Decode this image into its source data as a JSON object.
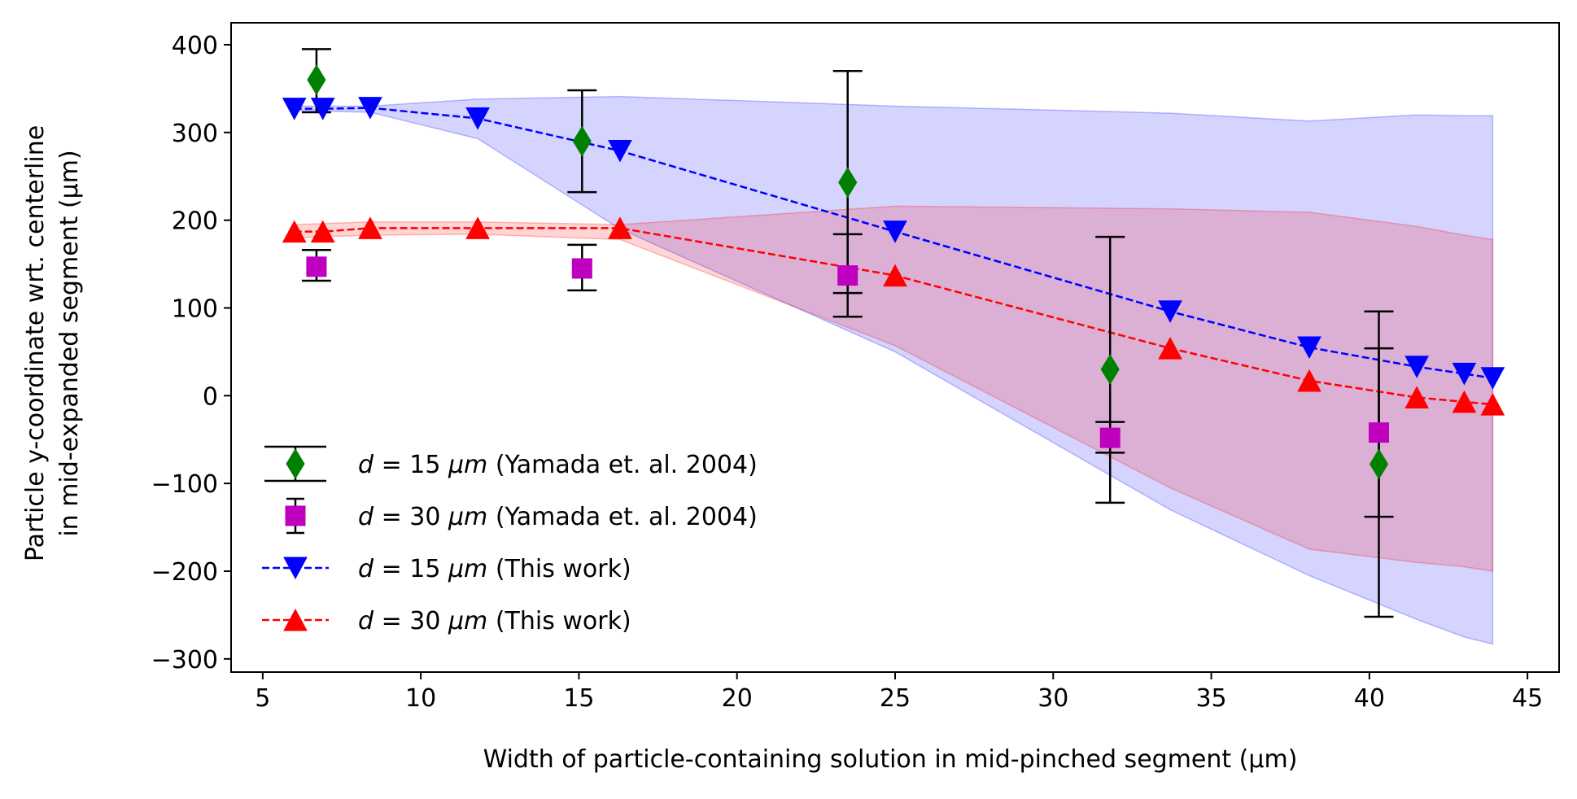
{
  "chart_data": {
    "type": "line",
    "title": "",
    "xlabel": "Width of particle-containing solution in mid-pinched segment (μm)",
    "ylabel_line1": "Particle y-coordinate wrt. centerline",
    "ylabel_line2": "in mid-expanded segment (μm)",
    "xlim": [
      4,
      46
    ],
    "ylim": [
      -315,
      425
    ],
    "x_ticks": [
      5,
      10,
      15,
      20,
      25,
      30,
      35,
      40,
      45
    ],
    "y_ticks": [
      400,
      300,
      200,
      100,
      0,
      -100,
      -200,
      -300
    ],
    "x_tick_labels": [
      "5",
      "10",
      "15",
      "20",
      "25",
      "30",
      "35",
      "40",
      "45"
    ],
    "y_tick_labels": [
      "400",
      "300",
      "200",
      "100",
      "0",
      "−100",
      "−200",
      "−300"
    ],
    "grid": false,
    "legend_position": "lower-left",
    "series": [
      {
        "name": "d=15 μm (Yamada et. al. 2004)",
        "label_var": "d",
        "label_eq": " = 15 ",
        "label_unit": "μm",
        "label_suffix": " (Yamada et. al. 2004)",
        "kind": "errorbar",
        "marker": "diamond",
        "color": "#008000",
        "x": [
          6.7,
          15.1,
          23.5,
          31.8,
          40.3
        ],
        "y": [
          360,
          290,
          243,
          30,
          -78
        ],
        "yerr_low": [
          323,
          232,
          117,
          -122,
          -252
        ],
        "yerr_high": [
          395,
          348,
          370,
          181,
          96
        ]
      },
      {
        "name": "d=30 μm (Yamada et. al. 2004)",
        "label_var": "d",
        "label_eq": " = 30 ",
        "label_unit": "μm",
        "label_suffix": " (Yamada et. al. 2004)",
        "kind": "errorbar",
        "marker": "square",
        "color": "#bf00bf",
        "x": [
          6.7,
          15.1,
          23.5,
          31.8,
          40.3
        ],
        "y": [
          147,
          145,
          137,
          -48,
          -42
        ],
        "yerr_low": [
          131,
          120,
          90,
          -65,
          -138
        ],
        "yerr_high": [
          166,
          172,
          184,
          -30,
          54
        ]
      },
      {
        "name": "d=15 μm (This work)",
        "label_var": "d",
        "label_eq": " = 15 ",
        "label_unit": "μm",
        "label_suffix": " (This work)",
        "kind": "line",
        "marker": "triangle-down",
        "color": "#0000ff",
        "x": [
          6.0,
          6.9,
          8.4,
          11.8,
          16.3,
          25.0,
          33.7,
          38.1,
          41.5,
          43.0,
          43.9
        ],
        "y": [
          327,
          327,
          328,
          316,
          279,
          187,
          96,
          55,
          33,
          25,
          20
        ],
        "band_x": [
          6.0,
          8.4,
          11.8,
          16.3,
          25.0,
          33.7,
          38.1,
          41.5,
          43.0,
          43.9
        ],
        "band_low": [
          325,
          323,
          293,
          190,
          50,
          -130,
          -205,
          -255,
          -275,
          -283
        ],
        "band_high": [
          330,
          330,
          338,
          341,
          330,
          322,
          313,
          320,
          319,
          319
        ]
      },
      {
        "name": "d=30 μm (This work)",
        "label_var": "d",
        "label_eq": " = 30 ",
        "label_unit": "μm",
        "label_suffix": " (This work)",
        "kind": "line",
        "marker": "triangle-up",
        "color": "#ff0000",
        "x": [
          6.0,
          6.9,
          8.4,
          11.8,
          16.3,
          25.0,
          33.7,
          38.1,
          41.5,
          43.0,
          43.9
        ],
        "y": [
          187,
          187,
          191,
          191,
          191,
          137,
          54,
          17,
          -2,
          -7,
          -10
        ],
        "band_x": [
          6.0,
          8.4,
          11.8,
          16.3,
          25.0,
          33.7,
          38.1,
          41.5,
          43.0,
          43.9
        ],
        "band_low": [
          180,
          183,
          184,
          178,
          57,
          -105,
          -175,
          -190,
          -195,
          -200
        ],
        "band_high": [
          195,
          198,
          198,
          195,
          216,
          213,
          209,
          193,
          183,
          178
        ]
      }
    ]
  }
}
